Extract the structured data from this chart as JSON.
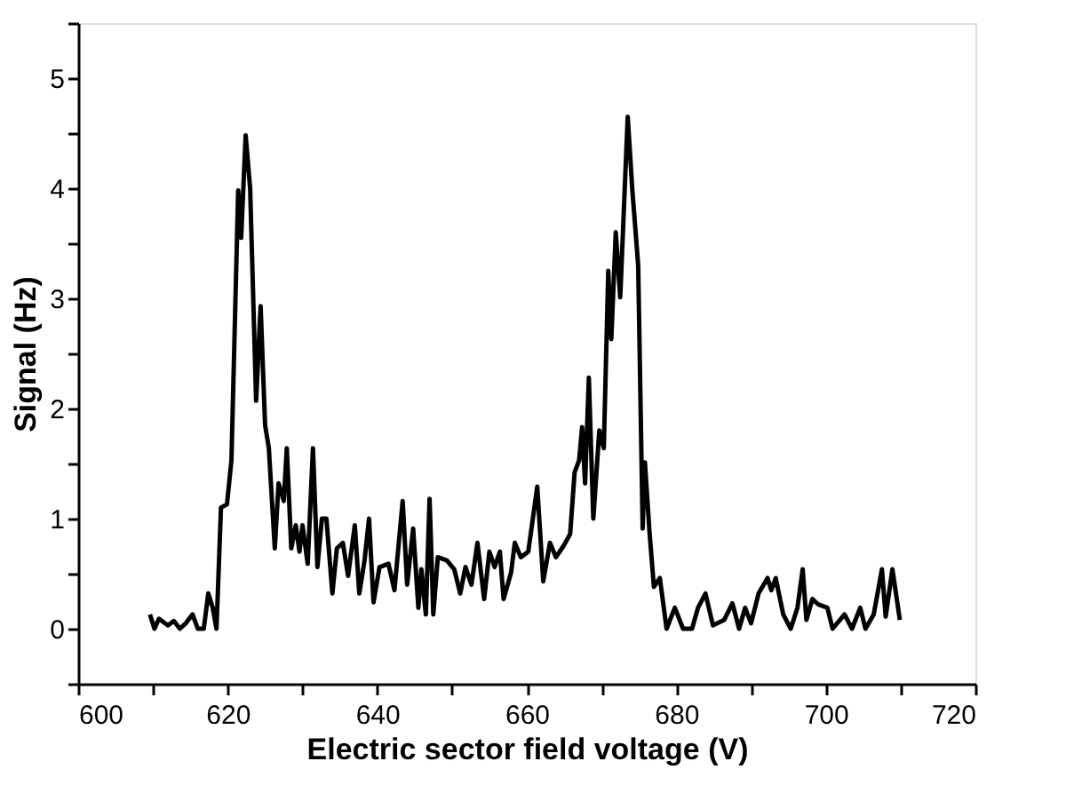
{
  "chart_data": {
    "type": "line",
    "xlabel": "Electric sector field voltage (V)",
    "ylabel": "Signal (Hz)",
    "xlim": [
      600,
      720
    ],
    "ylim": [
      -0.5,
      5.5
    ],
    "xticks": [
      600,
      {
        "value": 610,
        "label": null
      },
      620,
      {
        "value": 630,
        "label": null
      },
      640,
      {
        "value": 650,
        "label": null
      },
      660,
      {
        "value": 670,
        "label": null
      },
      680,
      {
        "value": 690,
        "label": null
      },
      700,
      {
        "value": 710,
        "label": null
      },
      720
    ],
    "yticks": [
      {
        "value": -0.5,
        "label": null
      },
      0,
      {
        "value": 0.5,
        "label": null
      },
      1,
      {
        "value": 1.5,
        "label": null
      },
      2,
      {
        "value": 2.5,
        "label": null
      },
      3,
      {
        "value": 3.5,
        "label": null
      },
      4,
      {
        "value": 4.5,
        "label": null
      },
      5,
      {
        "value": 5.5,
        "label": null
      }
    ],
    "grid": false,
    "marker": "none",
    "line_style": "solid",
    "series": [
      {
        "color": "#000000",
        "x": [
          609.6,
          610.2,
          610.8,
          612,
          612.8,
          613.6,
          614.4,
          615.3,
          616,
          616.8,
          617.4,
          618,
          618.5,
          619.1,
          619.9,
          620.5,
          621.4,
          621.8,
          622.4,
          623,
          623.8,
          624.4,
          625,
          625.5,
          626.3,
          626.8,
          627.5,
          627.9,
          628.5,
          629.1,
          629.6,
          630,
          630.7,
          631.4,
          632,
          632.6,
          633.2,
          634,
          634.6,
          635.4,
          636.1,
          637,
          637.6,
          638.3,
          638.9,
          639.5,
          640.3,
          641.5,
          642.3,
          643.4,
          644,
          644.8,
          645.5,
          645.9,
          646.5,
          647,
          647.5,
          648.1,
          649.3,
          650.3,
          651.1,
          651.8,
          652.6,
          653.4,
          654.3,
          655,
          655.7,
          656.4,
          656.9,
          657.9,
          658.4,
          659.2,
          660.2,
          661.4,
          662.2,
          663.1,
          663.9,
          664.9,
          665.8,
          666.4,
          667,
          667.4,
          667.8,
          668.3,
          668.9,
          669.7,
          670.3,
          670.9,
          671.3,
          671.9,
          672.5,
          673.5,
          674.1,
          674.9,
          675.5,
          675.8,
          676.4,
          677,
          677.8,
          678.7,
          679.8,
          680.9,
          682.1,
          682.9,
          683.9,
          684.9,
          686.4,
          687.5,
          688.4,
          689.2,
          690,
          691,
          692.2,
          692.7,
          693.3,
          694.3,
          695.3,
          696.2,
          696.9,
          697.4,
          698.2,
          699,
          700.2,
          700.9,
          702.5,
          703.5,
          704.6,
          705.3,
          706.4,
          707.5,
          708,
          708.9,
          709.9
        ],
        "values": [
          0.13,
          0,
          0.09,
          0.03,
          0.07,
          0,
          0.05,
          0.13,
          0,
          0,
          0.32,
          0.19,
          0,
          1.1,
          1.13,
          1.53,
          3.98,
          3.55,
          4.48,
          4.0,
          2.07,
          2.93,
          1.85,
          1.64,
          0.73,
          1.32,
          1.16,
          1.64,
          0.73,
          0.94,
          0.7,
          0.94,
          0.59,
          1.64,
          0.56,
          1.0,
          1.0,
          0.32,
          0.73,
          0.78,
          0.48,
          0.94,
          0.32,
          0.62,
          1.0,
          0.24,
          0.56,
          0.59,
          0.35,
          1.16,
          0.4,
          0.91,
          0.19,
          0.54,
          0.13,
          1.18,
          0.13,
          0.65,
          0.62,
          0.54,
          0.32,
          0.56,
          0.4,
          0.78,
          0.27,
          0.7,
          0.56,
          0.7,
          0.27,
          0.51,
          0.78,
          0.65,
          0.7,
          1.29,
          0.43,
          0.78,
          0.65,
          0.75,
          0.86,
          1.42,
          1.53,
          1.83,
          1.32,
          2.28,
          1.0,
          1.8,
          1.64,
          3.25,
          2.63,
          3.6,
          3.01,
          4.65,
          4.0,
          3.3,
          0.91,
          1.51,
          0.89,
          0.38,
          0.46,
          0,
          0.19,
          0,
          0,
          0.19,
          0.32,
          0.03,
          0.08,
          0.23,
          0,
          0.19,
          0.05,
          0.32,
          0.46,
          0.35,
          0.46,
          0.13,
          0,
          0.19,
          0.54,
          0.08,
          0.27,
          0.22,
          0.19,
          0,
          0.13,
          0,
          0.19,
          0,
          0.13,
          0.54,
          0.11,
          0.54,
          0.08
        ]
      }
    ]
  }
}
